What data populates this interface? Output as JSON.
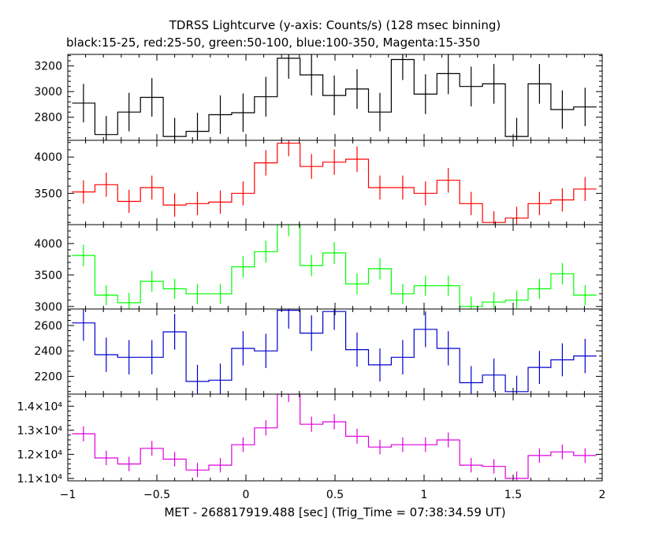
{
  "title": "TDRSS Lightcurve (y-axis: Counts/s) (128 msec binning)",
  "subtitle": "black:15-25, red:25-50, green:50-100, blue:100-350, Magenta:15-350",
  "xlabel": "MET - 268817919.488 [sec] (Trig_Time = 07:38:34.59 UT)",
  "chart_data": {
    "type": "line",
    "step": true,
    "error_bars": true,
    "title": "TDRSS Lightcurve (y-axis: Counts/s) (128 msec binning)",
    "subtitle": "black:15-25, red:25-50, green:50-100, blue:100-350, Magenta:15-350",
    "xlabel": "MET - 268817919.488 [sec] (Trig_Time = 07:38:34.59 UT)",
    "xlim": [
      -1,
      2
    ],
    "xticks": [
      -1,
      -0.5,
      0,
      0.5,
      1,
      1.5,
      2
    ],
    "xtick_labels": [
      "−1",
      "−0.5",
      "0",
      "0.5",
      "1",
      "1.5",
      "2"
    ],
    "x": [
      -0.912,
      -0.784,
      -0.656,
      -0.528,
      -0.4,
      -0.272,
      -0.144,
      -0.016,
      0.112,
      0.24,
      0.368,
      0.496,
      0.624,
      0.752,
      0.88,
      1.008,
      1.136,
      1.264,
      1.392,
      1.52,
      1.648,
      1.776,
      1.904
    ],
    "bin_width": 0.128,
    "panels": [
      {
        "name": "black:15-25",
        "color": "#000000",
        "ylim": [
          2620,
          3290
        ],
        "yticks": [
          2800,
          3000,
          3200
        ],
        "ytick_labels": [
          "2800",
          "3000",
          "3200"
        ],
        "values": [
          2910,
          2665,
          2840,
          2955,
          2650,
          2690,
          2820,
          2835,
          2960,
          3260,
          3130,
          2970,
          3020,
          2840,
          3250,
          2980,
          3140,
          3040,
          3060,
          2650,
          3060,
          2860,
          2880
        ],
        "errors": [
          150,
          145,
          150,
          150,
          145,
          145,
          150,
          150,
          155,
          160,
          160,
          155,
          155,
          150,
          160,
          155,
          160,
          155,
          155,
          145,
          155,
          150,
          150
        ]
      },
      {
        "name": "red:25-50",
        "color": "#ff0000",
        "ylim": [
          3070,
          4230
        ],
        "yticks": [
          3500,
          4000
        ],
        "ytick_labels": [
          "3500",
          "4000"
        ],
        "values": [
          3520,
          3620,
          3390,
          3580,
          3340,
          3360,
          3380,
          3500,
          3920,
          4190,
          3870,
          3930,
          3970,
          3580,
          3580,
          3500,
          3680,
          3360,
          3100,
          3160,
          3360,
          3410,
          3560
        ],
        "errors": [
          160,
          165,
          160,
          165,
          160,
          160,
          160,
          165,
          175,
          180,
          170,
          175,
          175,
          165,
          165,
          165,
          170,
          160,
          155,
          155,
          160,
          160,
          165
        ]
      },
      {
        "name": "green:50-100",
        "color": "#00ff00",
        "ylim": [
          2960,
          4300
        ],
        "yticks": [
          3000,
          3500,
          4000
        ],
        "ytick_labels": [
          "3000",
          "3500",
          "4000"
        ],
        "values": [
          3810,
          3180,
          3060,
          3400,
          3280,
          3200,
          3200,
          3630,
          3870,
          4300,
          3650,
          3850,
          3360,
          3600,
          3200,
          3330,
          3330,
          3000,
          3070,
          3100,
          3280,
          3520,
          3180
        ],
        "errors": [
          170,
          160,
          155,
          165,
          160,
          160,
          160,
          170,
          175,
          185,
          170,
          175,
          165,
          170,
          160,
          160,
          160,
          155,
          155,
          155,
          160,
          170,
          160
        ]
      },
      {
        "name": "blue:100-350",
        "color": "#0000cc",
        "ylim": [
          2060,
          2730
        ],
        "yticks": [
          2200,
          2400,
          2600
        ],
        "ytick_labels": [
          "2200",
          "2400",
          "2600"
        ],
        "values": [
          2620,
          2370,
          2350,
          2350,
          2550,
          2160,
          2170,
          2420,
          2400,
          2720,
          2540,
          2710,
          2410,
          2290,
          2350,
          2570,
          2420,
          2150,
          2210,
          2080,
          2270,
          2330,
          2360
        ],
        "errors": [
          140,
          135,
          135,
          135,
          140,
          130,
          130,
          135,
          135,
          145,
          140,
          145,
          135,
          130,
          135,
          140,
          135,
          130,
          130,
          125,
          130,
          130,
          135
        ]
      },
      {
        "name": "Magenta:15-350",
        "color": "#dd00dd",
        "ylim": [
          10900,
          14500
        ],
        "yticks": [
          11000,
          12000,
          13000,
          14000
        ],
        "ytick_labels": [
          "1.1×10⁴",
          "1.2×10⁴",
          "1.3×10⁴",
          "1.4×10⁴"
        ],
        "values": [
          12850,
          11850,
          11600,
          12250,
          11800,
          11350,
          11550,
          12400,
          13100,
          14500,
          13250,
          13350,
          12750,
          12300,
          12400,
          12400,
          12600,
          11550,
          11500,
          11000,
          11950,
          12100,
          11950
        ],
        "errors": [
          310,
          300,
          300,
          305,
          300,
          295,
          300,
          305,
          315,
          330,
          315,
          315,
          310,
          305,
          305,
          305,
          310,
          300,
          300,
          290,
          300,
          305,
          300
        ]
      }
    ]
  }
}
